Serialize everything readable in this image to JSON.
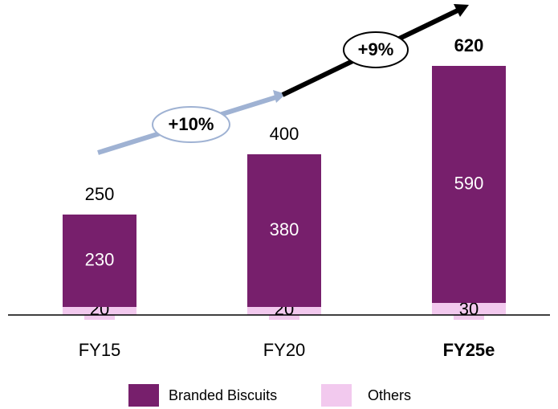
{
  "chart_data": {
    "type": "stacked-bar",
    "categories": [
      "FY15",
      "FY20",
      "FY25e"
    ],
    "series": [
      {
        "name": "Others",
        "color": "#f2c9ee",
        "values": [
          20,
          20,
          30
        ]
      },
      {
        "name": "Branded Biscuits",
        "color": "#771f6c",
        "values": [
          230,
          380,
          590
        ]
      }
    ],
    "totals": [
      250,
      400,
      620
    ],
    "annotations": [
      "+10%",
      "+9%"
    ],
    "ylim": [
      0,
      784
    ]
  }
}
